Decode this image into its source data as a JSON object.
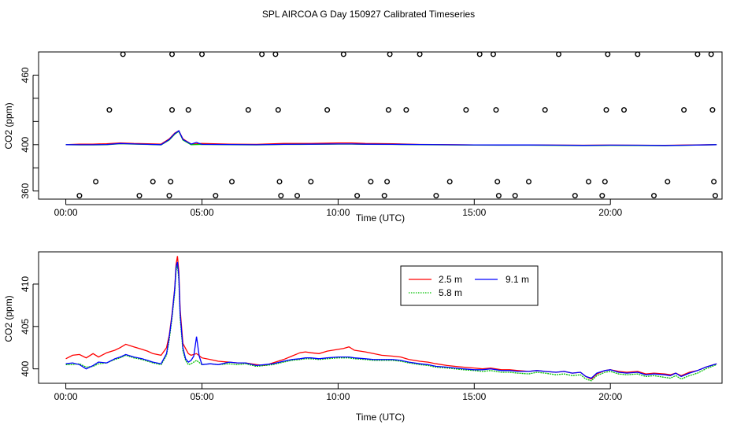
{
  "title": "SPL AIRCOA G  Day 150927  Calibrated Timeseries",
  "chart_data": [
    {
      "type": "scatter+line",
      "id": "top",
      "xlabel": "Time (UTC)",
      "ylabel": "CO2 (ppm)",
      "xlim": [
        -1.0,
        24.1
      ],
      "ylim": [
        353,
        480
      ],
      "xticks": [
        0,
        5,
        10,
        15,
        20
      ],
      "xtick_labels": [
        "00:00",
        "05:00",
        "10:00",
        "15:00",
        "20:00"
      ],
      "yticks": [
        360,
        380,
        400,
        420,
        440,
        460
      ],
      "ytick_labels": [
        "360",
        "",
        "400",
        "",
        "",
        "460"
      ],
      "points": [
        [
          0.5,
          356
        ],
        [
          1.1,
          368
        ],
        [
          1.6,
          430
        ],
        [
          2.1,
          478
        ],
        [
          2.7,
          356
        ],
        [
          3.2,
          368
        ],
        [
          3.8,
          356
        ],
        [
          3.85,
          368
        ],
        [
          3.9,
          430
        ],
        [
          3.9,
          478
        ],
        [
          4.5,
          430
        ],
        [
          5.0,
          478
        ],
        [
          5.5,
          356
        ],
        [
          6.1,
          368
        ],
        [
          6.7,
          430
        ],
        [
          7.2,
          478
        ],
        [
          7.7,
          478
        ],
        [
          7.8,
          430
        ],
        [
          7.85,
          368
        ],
        [
          7.9,
          356
        ],
        [
          8.5,
          356
        ],
        [
          9.0,
          368
        ],
        [
          9.6,
          430
        ],
        [
          10.2,
          478
        ],
        [
          10.7,
          356
        ],
        [
          11.2,
          368
        ],
        [
          11.7,
          356
        ],
        [
          11.8,
          368
        ],
        [
          11.85,
          430
        ],
        [
          11.9,
          478
        ],
        [
          12.5,
          430
        ],
        [
          13.0,
          478
        ],
        [
          13.6,
          356
        ],
        [
          14.1,
          368
        ],
        [
          14.7,
          430
        ],
        [
          15.2,
          478
        ],
        [
          15.7,
          478
        ],
        [
          15.8,
          430
        ],
        [
          15.85,
          368
        ],
        [
          15.9,
          356
        ],
        [
          16.5,
          356
        ],
        [
          17.0,
          368
        ],
        [
          17.6,
          430
        ],
        [
          18.1,
          478
        ],
        [
          18.7,
          356
        ],
        [
          19.2,
          368
        ],
        [
          19.7,
          356
        ],
        [
          19.8,
          368
        ],
        [
          19.85,
          430
        ],
        [
          19.9,
          478
        ],
        [
          20.5,
          430
        ],
        [
          21.0,
          478
        ],
        [
          21.6,
          356
        ],
        [
          22.1,
          368
        ],
        [
          22.7,
          430
        ],
        [
          23.2,
          478
        ],
        [
          23.7,
          478
        ],
        [
          23.75,
          430
        ],
        [
          23.8,
          368
        ],
        [
          23.85,
          356
        ]
      ],
      "series": [
        {
          "name": "2.5 m",
          "color": "#ff0000",
          "x": [
            0,
            0.5,
            1,
            1.5,
            2,
            2.5,
            3,
            3.5,
            3.8,
            4.0,
            4.15,
            4.3,
            4.6,
            5,
            6,
            7,
            8,
            9,
            10,
            10.5,
            11,
            12,
            13,
            14,
            15,
            16,
            17,
            18,
            19,
            20,
            21,
            22,
            23,
            23.9
          ],
          "y": [
            400,
            400.5,
            400.5,
            400.8,
            401.5,
            401,
            400.8,
            400.5,
            405,
            410,
            412,
            405,
            400.5,
            401,
            400.5,
            400.3,
            401,
            401,
            401.5,
            401.5,
            401,
            400.8,
            400.2,
            400,
            399.8,
            399.8,
            399.8,
            399.6,
            399.5,
            399.6,
            399.5,
            399.4,
            399.7,
            400
          ]
        },
        {
          "name": "5.8 m",
          "color": "#00c000",
          "x": [
            0,
            0.5,
            1,
            1.5,
            2,
            2.5,
            3,
            3.5,
            3.8,
            4.0,
            4.15,
            4.3,
            4.6,
            5,
            6,
            7,
            8,
            9,
            10,
            10.5,
            11,
            12,
            13,
            14,
            15,
            16,
            17,
            18,
            19,
            20,
            21,
            22,
            23,
            23.9
          ],
          "y": [
            400,
            399.8,
            399.8,
            400,
            400.8,
            400.5,
            400.2,
            399.8,
            404,
            409,
            411.5,
            404,
            400,
            400.2,
            400,
            399.8,
            400.2,
            400.3,
            400.5,
            400.5,
            400.3,
            400.2,
            400,
            399.8,
            399.6,
            399.5,
            399.5,
            399.4,
            399.2,
            399.4,
            399.3,
            399.1,
            399.5,
            400
          ]
        },
        {
          "name": "9.1 m",
          "color": "#0000ff",
          "x": [
            0,
            0.5,
            1,
            1.5,
            2,
            2.5,
            3,
            3.5,
            3.8,
            4.0,
            4.15,
            4.3,
            4.6,
            4.8,
            4.9,
            5,
            6,
            7,
            8,
            9,
            10,
            10.5,
            11,
            12,
            13,
            14,
            15,
            16,
            17,
            18,
            19,
            20,
            21,
            22,
            23,
            23.9
          ],
          "y": [
            400,
            399.9,
            399.9,
            400.1,
            401,
            400.6,
            400.3,
            400,
            404.5,
            409.5,
            412,
            404.5,
            400.5,
            402,
            401,
            400.3,
            400.1,
            399.9,
            400.3,
            400.4,
            400.6,
            400.6,
            400.4,
            400.3,
            400.1,
            399.9,
            399.8,
            399.7,
            399.7,
            399.6,
            399.4,
            399.6,
            399.5,
            399.3,
            399.6,
            400
          ]
        }
      ]
    },
    {
      "type": "line",
      "id": "bottom",
      "xlabel": "Time (UTC)",
      "ylabel": "CO2 (ppm)",
      "xlim": [
        -1.0,
        24.1
      ],
      "ylim": [
        398.3,
        413.8
      ],
      "xticks": [
        0,
        5,
        10,
        15,
        20
      ],
      "xtick_labels": [
        "00:00",
        "05:00",
        "10:00",
        "15:00",
        "20:00"
      ],
      "yticks": [
        400,
        405,
        410
      ],
      "ytick_labels": [
        "400",
        "405",
        "410"
      ],
      "legend": {
        "position": "top-center",
        "entries": [
          "2.5 m",
          "5.8 m",
          "9.1 m"
        ]
      },
      "series": [
        {
          "name": "2.5 m",
          "color": "#ff0000",
          "x": [
            0,
            0.25,
            0.5,
            0.75,
            1,
            1.2,
            1.5,
            1.8,
            2,
            2.2,
            2.5,
            2.8,
            3,
            3.2,
            3.5,
            3.7,
            3.8,
            3.9,
            4.0,
            4.05,
            4.1,
            4.15,
            4.2,
            4.3,
            4.4,
            4.5,
            4.6,
            4.8,
            5,
            5.3,
            5.6,
            6,
            6.3,
            6.6,
            7,
            7.3,
            7.6,
            8,
            8.3,
            8.6,
            8.8,
            9,
            9.3,
            9.6,
            10,
            10.2,
            10.4,
            10.6,
            11,
            11.3,
            11.6,
            12,
            12.3,
            12.6,
            13,
            13.3,
            13.6,
            14,
            14.3,
            14.6,
            15,
            15.3,
            15.6,
            16,
            16.3,
            16.6,
            17,
            17.3,
            17.6,
            18,
            18.3,
            18.6,
            18.9,
            19.1,
            19.3,
            19.5,
            19.8,
            20,
            20.3,
            20.6,
            21,
            21.3,
            21.6,
            22,
            22.2,
            22.4,
            22.6,
            22.9,
            23.2,
            23.5,
            23.9
          ],
          "y": [
            401.2,
            401.6,
            401.7,
            401.3,
            401.8,
            401.4,
            401.9,
            402.2,
            402.5,
            402.9,
            402.6,
            402.3,
            402.1,
            401.8,
            401.6,
            402.5,
            404,
            406.5,
            409.5,
            412.3,
            413.3,
            411.5,
            407,
            403,
            402.4,
            401.8,
            401.6,
            401.8,
            401.3,
            401.1,
            400.9,
            400.8,
            400.7,
            400.7,
            400.5,
            400.4,
            400.7,
            401.1,
            401.5,
            401.9,
            402,
            401.9,
            401.8,
            402.1,
            402.3,
            402.4,
            402.6,
            402.2,
            402.0,
            401.8,
            401.6,
            401.5,
            401.4,
            401.1,
            400.9,
            400.8,
            400.6,
            400.4,
            400.3,
            400.2,
            400.1,
            400.0,
            400.1,
            399.9,
            399.9,
            399.8,
            399.7,
            399.8,
            399.7,
            399.6,
            399.7,
            399.5,
            399.6,
            399.1,
            398.8,
            399.4,
            399.8,
            399.9,
            399.7,
            399.6,
            399.7,
            399.4,
            399.5,
            399.4,
            399.3,
            399.5,
            399.2,
            399.6,
            399.8,
            400.2,
            400.6
          ]
        },
        {
          "name": "5.8 m",
          "color": "#00c000",
          "x": [
            0,
            0.25,
            0.5,
            0.75,
            1,
            1.2,
            1.5,
            1.8,
            2,
            2.2,
            2.5,
            2.8,
            3,
            3.2,
            3.5,
            3.7,
            3.8,
            3.9,
            4.0,
            4.05,
            4.1,
            4.15,
            4.2,
            4.3,
            4.4,
            4.5,
            4.6,
            4.8,
            5,
            5.3,
            5.6,
            6,
            6.3,
            6.6,
            7,
            7.3,
            7.6,
            8,
            8.3,
            8.6,
            8.8,
            9,
            9.3,
            9.6,
            10,
            10.2,
            10.4,
            10.6,
            11,
            11.3,
            11.6,
            12,
            12.3,
            12.6,
            13,
            13.3,
            13.6,
            14,
            14.3,
            14.6,
            15,
            15.3,
            15.6,
            16,
            16.3,
            16.6,
            17,
            17.3,
            17.6,
            18,
            18.3,
            18.6,
            18.9,
            19.1,
            19.3,
            19.5,
            19.8,
            20,
            20.3,
            20.6,
            21,
            21.3,
            21.6,
            22,
            22.2,
            22.4,
            22.6,
            22.9,
            23.2,
            23.5,
            23.9
          ],
          "y": [
            400.5,
            400.5,
            400.6,
            400.2,
            400.3,
            400.6,
            400.7,
            401.1,
            401.3,
            401.6,
            401.3,
            401.1,
            400.9,
            400.7,
            400.5,
            401.6,
            403.5,
            406,
            409,
            411.6,
            412.2,
            410.5,
            406,
            402.1,
            401,
            400.5,
            400.6,
            401,
            400.5,
            400.6,
            400.5,
            400.6,
            400.5,
            400.6,
            400.3,
            400.4,
            400.5,
            400.8,
            401,
            401.1,
            401.2,
            401.2,
            401.1,
            401.2,
            401.3,
            401.3,
            401.3,
            401.2,
            401.1,
            401.0,
            401.0,
            401.0,
            400.9,
            400.7,
            400.5,
            400.4,
            400.2,
            400.1,
            400.0,
            399.9,
            399.8,
            399.7,
            399.8,
            399.6,
            399.6,
            399.5,
            399.4,
            399.6,
            399.5,
            399.3,
            399.4,
            399.2,
            399.3,
            398.8,
            398.6,
            399.2,
            399.6,
            399.7,
            399.4,
            399.3,
            399.4,
            399.1,
            399.2,
            399.0,
            398.9,
            399.2,
            398.8,
            399.2,
            399.5,
            400.0,
            400.5
          ]
        },
        {
          "name": "9.1 m",
          "color": "#0000ff",
          "x": [
            0,
            0.25,
            0.5,
            0.75,
            1,
            1.2,
            1.5,
            1.8,
            2,
            2.2,
            2.5,
            2.8,
            3,
            3.2,
            3.5,
            3.7,
            3.8,
            3.9,
            4.0,
            4.05,
            4.1,
            4.15,
            4.2,
            4.3,
            4.4,
            4.5,
            4.6,
            4.7,
            4.8,
            4.9,
            5,
            5.3,
            5.6,
            6,
            6.3,
            6.6,
            7,
            7.3,
            7.6,
            8,
            8.3,
            8.6,
            8.8,
            9,
            9.3,
            9.6,
            10,
            10.2,
            10.4,
            10.6,
            11,
            11.3,
            11.6,
            12,
            12.3,
            12.6,
            13,
            13.3,
            13.6,
            14,
            14.3,
            14.6,
            15,
            15.3,
            15.6,
            16,
            16.3,
            16.6,
            17,
            17.3,
            17.6,
            18,
            18.3,
            18.6,
            18.9,
            19.1,
            19.3,
            19.5,
            19.8,
            20,
            20.3,
            20.6,
            21,
            21.3,
            21.6,
            22,
            22.2,
            22.4,
            22.6,
            22.9,
            23.2,
            23.5,
            23.9
          ],
          "y": [
            400.6,
            400.7,
            400.5,
            400.0,
            400.4,
            400.8,
            400.7,
            401.2,
            401.4,
            401.7,
            401.4,
            401.2,
            401.0,
            400.8,
            400.6,
            401.8,
            403.8,
            406.3,
            409.4,
            412,
            412.6,
            411,
            406.5,
            402.5,
            401.2,
            400.8,
            401,
            401.5,
            403.8,
            401.5,
            400.5,
            400.6,
            400.5,
            400.8,
            400.7,
            400.7,
            400.4,
            400.5,
            400.6,
            400.9,
            401.1,
            401.2,
            401.3,
            401.3,
            401.2,
            401.3,
            401.4,
            401.4,
            401.4,
            401.3,
            401.2,
            401.1,
            401.1,
            401.1,
            401.0,
            400.8,
            400.6,
            400.5,
            400.3,
            400.2,
            400.1,
            400.0,
            399.9,
            399.9,
            400.0,
            399.8,
            399.8,
            399.7,
            399.7,
            399.8,
            399.7,
            399.6,
            399.7,
            399.5,
            399.6,
            399.1,
            398.9,
            399.5,
            399.8,
            399.9,
            399.6,
            399.5,
            399.6,
            399.3,
            399.4,
            399.3,
            399.2,
            399.5,
            399.1,
            399.5,
            399.8,
            400.2,
            400.6
          ]
        }
      ]
    }
  ]
}
